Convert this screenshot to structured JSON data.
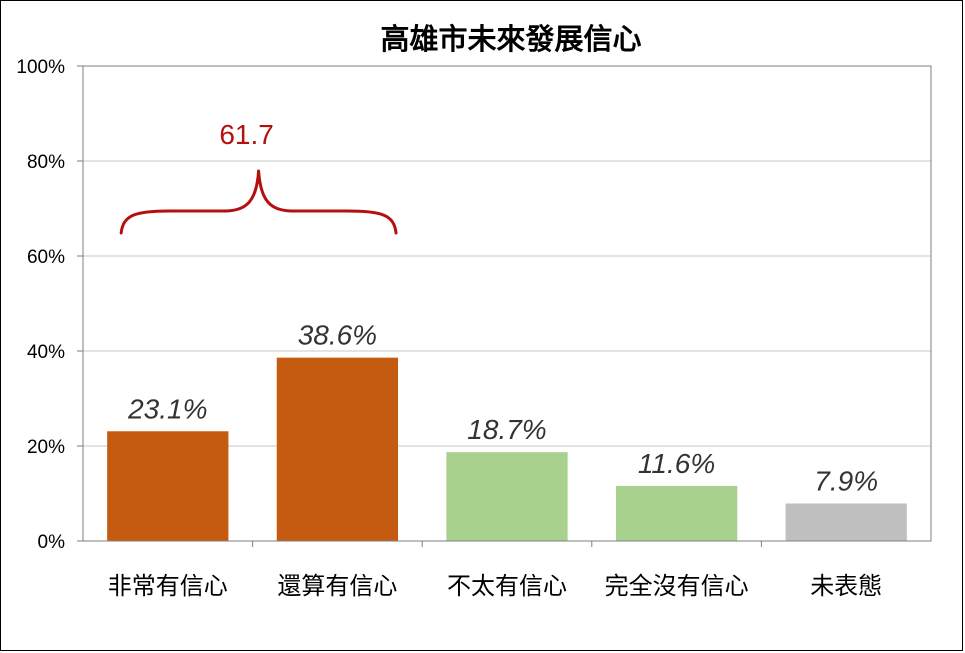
{
  "chart_data": {
    "type": "bar",
    "title": "高雄市未來發展信心",
    "categories": [
      "非常有信心",
      "還算有信心",
      "不太有信心",
      "完全沒有信心",
      "未表態"
    ],
    "values": [
      23.1,
      38.6,
      18.7,
      11.6,
      7.9
    ],
    "data_labels": [
      "23.1%",
      "38.6%",
      "18.7%",
      "11.6%",
      "7.9%"
    ],
    "bar_colors": [
      "#c55a11",
      "#c55a11",
      "#a9d18e",
      "#a9d18e",
      "#bfbfbf"
    ],
    "ylim": [
      0,
      100
    ],
    "yticks": [
      0,
      20,
      40,
      60,
      80,
      100
    ],
    "ytick_labels": [
      "0%",
      "20%",
      "40%",
      "60%",
      "80%",
      "100%"
    ],
    "grid": true,
    "legend": "none",
    "xlabel": "",
    "ylabel": "",
    "annotation": {
      "text": "61.7",
      "spans": [
        "非常有信心",
        "還算有信心"
      ],
      "color": "#b50f0f"
    }
  }
}
